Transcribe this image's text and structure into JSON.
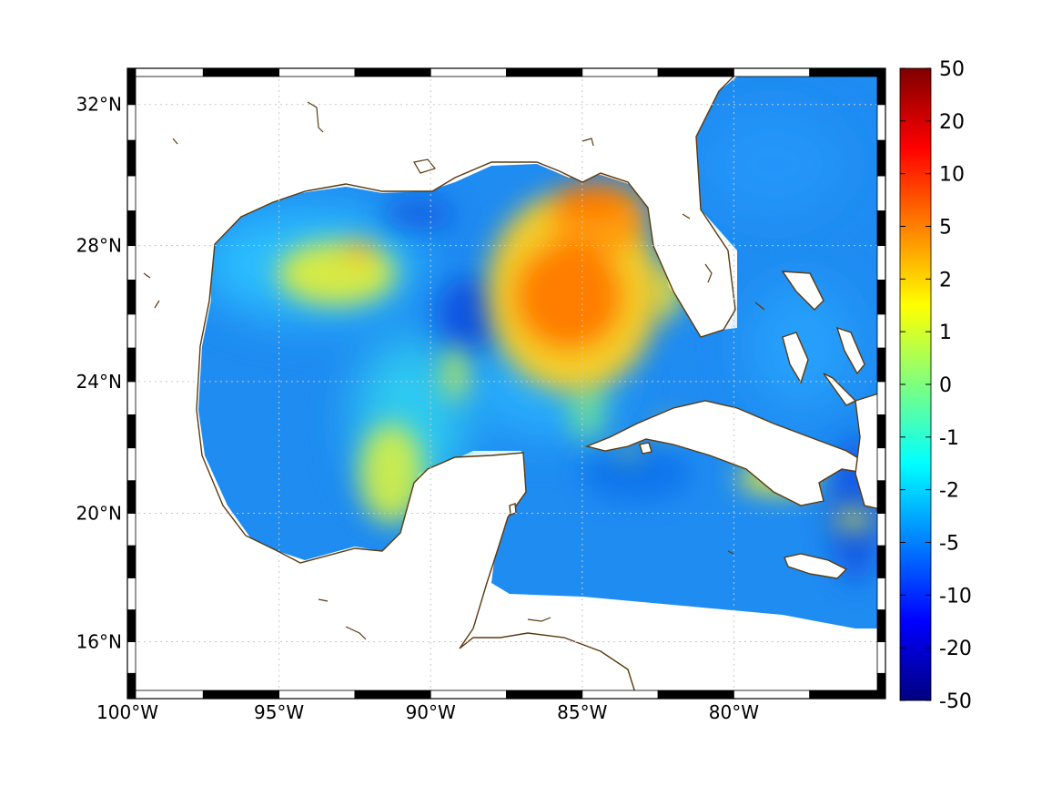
{
  "map": {
    "projection": "mercator",
    "lon_range": [
      -100,
      -75
    ],
    "lat_range": [
      14.2,
      33
    ],
    "x_ticks": [
      {
        "lon": -100,
        "label": "100°W"
      },
      {
        "lon": -95,
        "label": "95°W"
      },
      {
        "lon": -90,
        "label": "90°W"
      },
      {
        "lon": -85,
        "label": "85°W"
      },
      {
        "lon": -80,
        "label": "80°W"
      }
    ],
    "y_ticks": [
      {
        "lat": 16,
        "label": "16°N"
      },
      {
        "lat": 20,
        "label": "20°N"
      },
      {
        "lat": 24,
        "label": "24°N"
      },
      {
        "lat": 28,
        "label": "28°N"
      },
      {
        "lat": 32,
        "label": "32°N"
      }
    ],
    "grid": true,
    "frame_style": "alternating black-white",
    "coastline_color": "#5a3a10"
  },
  "colorbar": {
    "position": "right",
    "colormap": "jet",
    "ticks": [
      "50",
      "20",
      "10",
      "5",
      "2",
      "1",
      "0",
      "-1",
      "-2",
      "-5",
      "-10",
      "-20",
      "-50"
    ],
    "range": [
      -50,
      50
    ]
  },
  "field_features": [
    {
      "name": "loop-current-high",
      "lon": -85.3,
      "lat": 26.5,
      "value": 5
    },
    {
      "name": "west-florida-shelf-high",
      "lon": -84.8,
      "lat": 29.0,
      "value": 5
    },
    {
      "name": "texas-shelf-moderate",
      "lon": -93.5,
      "lat": 27.0,
      "value": 2
    },
    {
      "name": "campeche-moderate",
      "lon": -91.5,
      "lat": 21.0,
      "value": 1.5
    },
    {
      "name": "cuba-south-moderate",
      "lon": -78.5,
      "lat": 21.0,
      "value": 1.5
    }
  ]
}
